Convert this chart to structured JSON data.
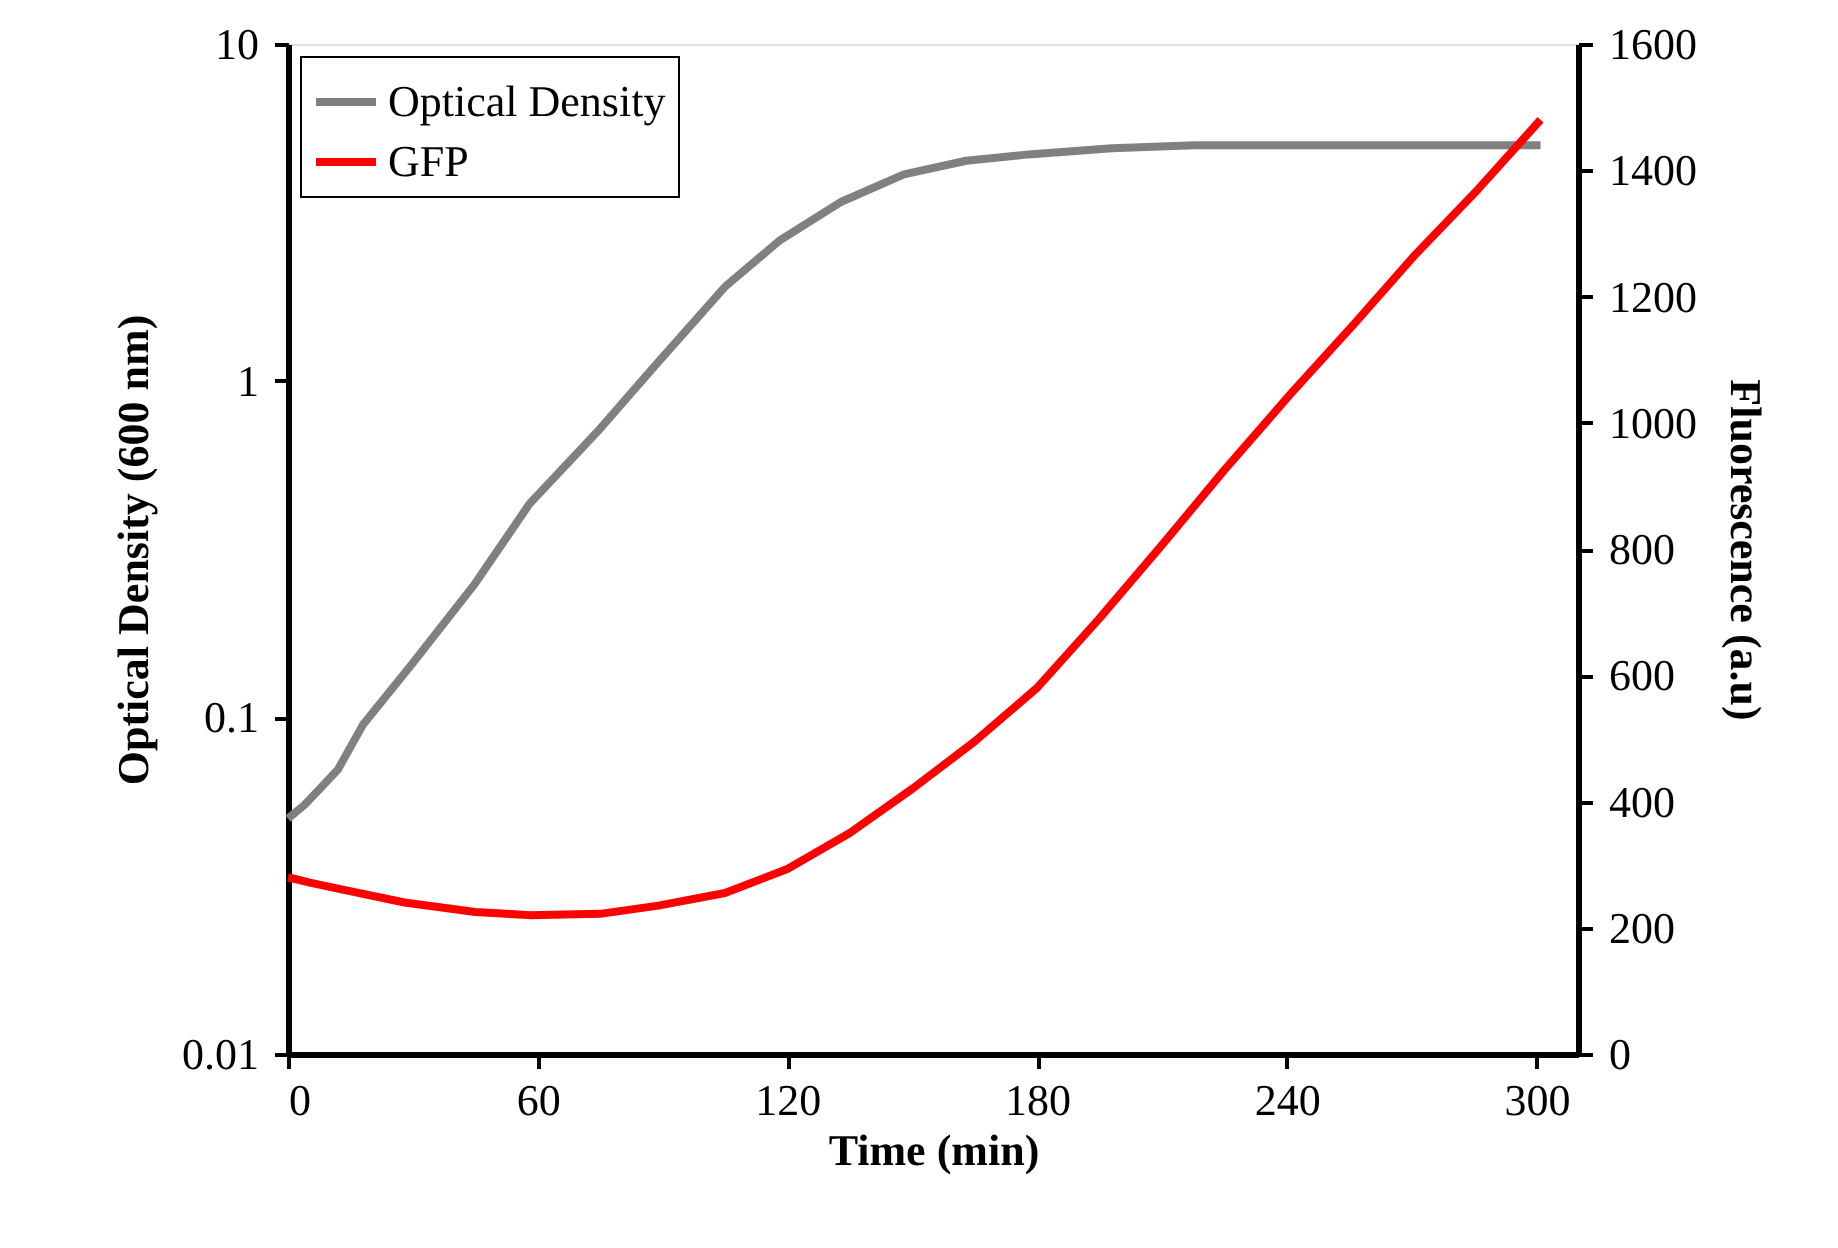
{
  "chart_data": {
    "type": "line",
    "xlabel": "Time (min)",
    "ylabel": "Optical Density (600 nm)",
    "y2label": "Fluorescence (a.u)",
    "xlim": [
      0,
      310
    ],
    "xticks": [
      0,
      60,
      120,
      180,
      240,
      300
    ],
    "ylim": [
      0.01,
      10
    ],
    "yticks": [
      0.01,
      0.1,
      1,
      10
    ],
    "log": "y",
    "y2lim": [
      0,
      1600
    ],
    "y2ticks": [
      0,
      200,
      400,
      600,
      800,
      1000,
      1200,
      1400,
      1600
    ],
    "legend": "top left",
    "grid": false,
    "line_style": "solid",
    "marker": "none",
    "series": [
      {
        "name": "Optical Density",
        "color": "#808080",
        "x": [
          0,
          4,
          8,
          12,
          18,
          30,
          45,
          58,
          75,
          88,
          105,
          118,
          133,
          148,
          163,
          178,
          198,
          218,
          250,
          280,
          301
        ],
        "values": [
          0.05,
          0.055,
          0.062,
          0.07,
          0.095,
          0.145,
          0.25,
          0.43,
          0.72,
          1.1,
          1.9,
          2.6,
          3.4,
          4.1,
          4.5,
          4.7,
          4.9,
          5.0,
          5.0,
          5.0,
          5.0
        ]
      },
      {
        "name": "GFP",
        "color": "#ff0000",
        "axis": "y2",
        "x": [
          0,
          5,
          12,
          28,
          45,
          58,
          75,
          89,
          105,
          120,
          135,
          150,
          165,
          180,
          195,
          210,
          225,
          241,
          256,
          271,
          286,
          301
        ],
        "values": [
          280,
          272,
          262,
          240,
          225,
          220,
          222,
          235,
          255,
          293,
          350,
          420,
          495,
          580,
          690,
          806,
          925,
          1046,
          1155,
          1267,
          1370,
          1480
        ]
      }
    ]
  }
}
